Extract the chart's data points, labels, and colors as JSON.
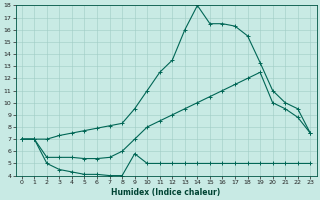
{
  "title": "",
  "xlabel": "Humidex (Indice chaleur)",
  "bg_color": "#c8eae4",
  "grid_color": "#a0ccc4",
  "line_color": "#006655",
  "xlim": [
    -0.5,
    23.5
  ],
  "ylim": [
    4,
    18
  ],
  "xticks": [
    0,
    1,
    2,
    3,
    4,
    5,
    6,
    7,
    8,
    9,
    10,
    11,
    12,
    13,
    14,
    15,
    16,
    17,
    18,
    19,
    20,
    21,
    22,
    23
  ],
  "yticks": [
    4,
    5,
    6,
    7,
    8,
    9,
    10,
    11,
    12,
    13,
    14,
    15,
    16,
    17,
    18
  ],
  "line1_x": [
    0,
    1,
    2,
    3,
    4,
    5,
    6,
    7,
    8,
    9,
    10,
    11,
    12,
    13,
    14,
    15,
    16,
    17,
    18,
    19,
    20,
    21,
    22,
    23
  ],
  "line1_y": [
    7.0,
    7.0,
    7.0,
    7.3,
    7.5,
    7.7,
    7.9,
    8.1,
    8.3,
    9.5,
    11.0,
    12.5,
    13.5,
    16.0,
    18.0,
    16.5,
    16.5,
    16.3,
    15.5,
    13.3,
    11.0,
    10.0,
    9.5,
    7.5
  ],
  "line2_x": [
    0,
    1,
    2,
    3,
    4,
    5,
    6,
    7,
    8,
    9,
    10,
    11,
    12,
    13,
    14,
    15,
    16,
    17,
    18,
    19,
    20,
    21,
    22,
    23
  ],
  "line2_y": [
    7.0,
    7.0,
    5.5,
    5.5,
    5.5,
    5.4,
    5.4,
    5.5,
    6.0,
    7.0,
    8.0,
    8.5,
    9.0,
    9.5,
    10.0,
    10.5,
    11.0,
    11.5,
    12.0,
    12.5,
    10.0,
    9.5,
    8.8,
    7.5
  ],
  "line3_x": [
    0,
    1,
    2,
    3,
    4,
    5,
    6,
    7,
    8,
    9,
    10,
    11,
    12,
    13,
    14,
    15,
    16,
    17,
    18,
    19,
    20,
    21,
    22,
    23
  ],
  "line3_y": [
    7.0,
    7.0,
    5.0,
    4.5,
    4.3,
    4.1,
    4.1,
    4.0,
    4.0,
    5.8,
    5.0,
    5.0,
    5.0,
    5.0,
    5.0,
    5.0,
    5.0,
    5.0,
    5.0,
    5.0,
    5.0,
    5.0,
    5.0,
    5.0
  ]
}
